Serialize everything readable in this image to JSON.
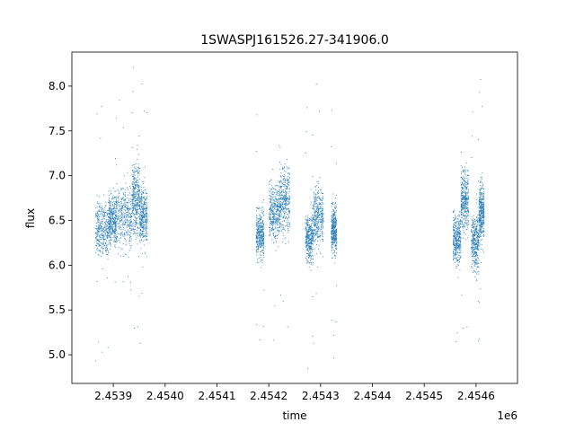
{
  "chart_data": {
    "type": "scatter",
    "title": "1SWASPJ161526.27-341906.0",
    "xlabel": "time",
    "ylabel": "flux",
    "x_offset_label": "1e6",
    "x_range": [
      2.45382,
      2.45468
    ],
    "y_range": [
      4.68,
      8.38
    ],
    "x_ticks": [
      2.4539,
      2.454,
      2.4541,
      2.4542,
      2.4543,
      2.4544,
      2.4545,
      2.4546
    ],
    "x_tick_labels": [
      "2.4539",
      "2.4540",
      "2.4541",
      "2.4542",
      "2.4543",
      "2.4544",
      "2.4545",
      "2.4546"
    ],
    "y_ticks": [
      5.0,
      5.5,
      6.0,
      6.5,
      7.0,
      7.5,
      8.0
    ],
    "y_tick_labels": [
      "5.0",
      "5.5",
      "6.0",
      "6.5",
      "7.0",
      "7.5",
      "8.0"
    ],
    "grid": false,
    "marker_color": "#1f77b4",
    "clusters": [
      {
        "x": [
          2.453865,
          2.45389
        ],
        "y_center": 6.4,
        "y_spread": 0.42
      },
      {
        "x": [
          2.45389,
          2.453905
        ],
        "y_center": 6.5,
        "y_spread": 0.38
      },
      {
        "x": [
          2.453905,
          2.453935
        ],
        "y_center": 6.55,
        "y_spread": 0.5
      },
      {
        "x": [
          2.453935,
          2.45395
        ],
        "y_center": 6.75,
        "y_spread": 0.55
      },
      {
        "x": [
          2.45395,
          2.453965
        ],
        "y_center": 6.55,
        "y_spread": 0.45
      },
      {
        "x": [
          2.454175,
          2.45419
        ],
        "y_center": 6.35,
        "y_spread": 0.38
      },
      {
        "x": [
          2.4542,
          2.45422
        ],
        "y_center": 6.6,
        "y_spread": 0.45
      },
      {
        "x": [
          2.45422,
          2.45424
        ],
        "y_center": 6.75,
        "y_spread": 0.55
      },
      {
        "x": [
          2.45427,
          2.454285
        ],
        "y_center": 6.3,
        "y_spread": 0.38
      },
      {
        "x": [
          2.454285,
          2.454305
        ],
        "y_center": 6.55,
        "y_spread": 0.45
      },
      {
        "x": [
          2.45432,
          2.45433
        ],
        "y_center": 6.4,
        "y_spread": 0.38
      },
      {
        "x": [
          2.454555,
          2.45457
        ],
        "y_center": 6.3,
        "y_spread": 0.4
      },
      {
        "x": [
          2.45457,
          2.454585
        ],
        "y_center": 6.75,
        "y_spread": 0.5
      },
      {
        "x": [
          2.45459,
          2.454605
        ],
        "y_center": 6.25,
        "y_spread": 0.45
      },
      {
        "x": [
          2.454605,
          2.454615
        ],
        "y_center": 6.6,
        "y_spread": 0.45
      }
    ]
  }
}
